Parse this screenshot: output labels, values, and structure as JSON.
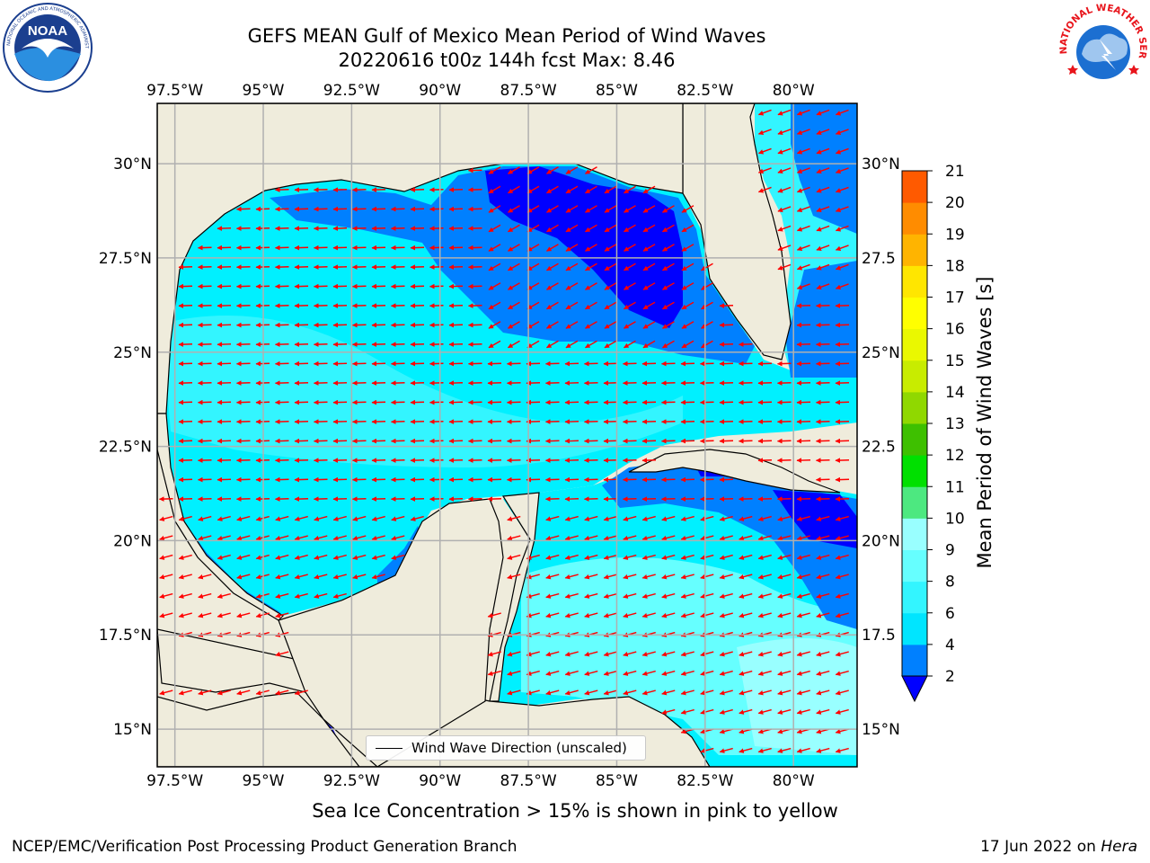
{
  "title": {
    "line1": "GEFS MEAN Gulf of Mexico Mean Period of Wind Waves",
    "line2": "20220616 t00z 144h fcst   Max: 8.46"
  },
  "logos": {
    "left": "noaa-logo",
    "right": "national-weather-service-logo",
    "left_text": "NATIONAL OCEANIC AND ATMOSPHERIC ADMINISTRATION · U.S. DEPARTMENT OF COMMERCE",
    "left_center_text": "NOAA",
    "right_text": "NATIONAL WEATHER SERVICE"
  },
  "map": {
    "lon_ticks": [
      "97.5°W",
      "95°W",
      "92.5°W",
      "90°W",
      "87.5°W",
      "85°W",
      "82.5°W",
      "80°W"
    ],
    "lat_ticks_left": [
      "30°N",
      "27.5°N",
      "25°N",
      "22.5°N",
      "20°N",
      "17.5°N",
      "15°N"
    ],
    "lat_ticks_right": [
      "30°N",
      "27.5",
      "25°N",
      "22.5",
      "20°N",
      "17.5",
      "15°N"
    ],
    "lon_range": [
      -98,
      -78.2
    ],
    "lat_range": [
      14,
      31.6
    ],
    "land_color": "#efecdc",
    "arrow_color": "#ff0000",
    "grid": true,
    "legend_label": "Wind Wave Direction (unscaled)",
    "legend_position": "bottom-center"
  },
  "colorbar": {
    "title": "Mean Period of Wind Waves [s]",
    "ticks": [
      "2",
      "4",
      "6",
      "8",
      "9",
      "10",
      "11",
      "12",
      "13",
      "14",
      "15",
      "16",
      "17",
      "18",
      "19",
      "20",
      "21"
    ],
    "colors": [
      "#0000ff",
      "#0080ff",
      "#00e5ff",
      "#33f5ff",
      "#66ffff",
      "#99ffff",
      "#4de880",
      "#00e000",
      "#3ec000",
      "#90d800",
      "#c8ec00",
      "#eaf800",
      "#ffff00",
      "#ffe600",
      "#ffb400",
      "#ff8c00",
      "#ff5a00",
      "#ff2000",
      "#ff0000"
    ],
    "extend": "min"
  },
  "subtitle": "Sea Ice Concentration > 15% is shown in pink to yellow",
  "footer": {
    "left": "NCEP/EMC/Verification Post Processing Product Generation Branch",
    "right_date": "17 Jun 2022 on ",
    "right_host": "Hera"
  }
}
